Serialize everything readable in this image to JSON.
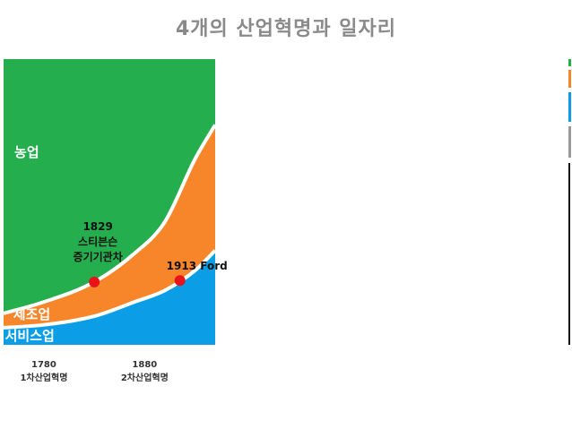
{
  "slide": {
    "title": "4개의 산업혁명과 일자리"
  },
  "colors": {
    "agriculture": "#24ae4e",
    "manufacturing": "#f7852a",
    "service": "#0b9ee6",
    "marker": "#e8141a",
    "divider": "#ffffff",
    "title": "#8a8a8a"
  },
  "chart_data": {
    "type": "area",
    "stacked": true,
    "normalized": true,
    "x": [
      1740,
      1780,
      1830,
      1870,
      1900,
      1930,
      1950
    ],
    "xlim": [
      1740,
      1950
    ],
    "ylim": [
      0,
      100
    ],
    "series": [
      {
        "name": "서비스업",
        "key": "service",
        "values": [
          6,
          7,
          10,
          15,
          19,
          26,
          33
        ]
      },
      {
        "name": "제조업",
        "key": "manufacturing",
        "values": [
          5,
          8,
          12,
          17,
          24,
          39,
          44
        ]
      },
      {
        "name": "농업",
        "key": "agriculture",
        "values": [
          89,
          85,
          78,
          68,
          57,
          35,
          23
        ]
      }
    ],
    "x_ticks": [
      {
        "x": 1780,
        "year": "1780",
        "label": "1차산업혁명"
      },
      {
        "x": 1880,
        "year": "1880",
        "label": "2차산업혁명"
      }
    ],
    "annotations": [
      {
        "x": 1830,
        "boundary": "top",
        "lines": [
          "1829",
          "스티븐슨",
          "증기기관차"
        ]
      },
      {
        "x": 1915,
        "boundary": "middle",
        "lines": [
          "1913  Ford"
        ]
      }
    ]
  }
}
